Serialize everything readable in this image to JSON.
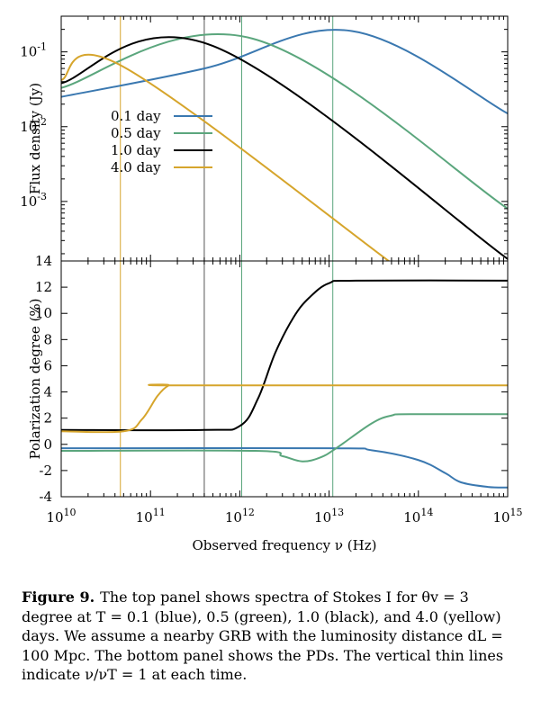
{
  "chart_data": [
    {
      "type": "line",
      "panel": "top",
      "ylabel": "Flux density (Jy)",
      "xscale": "log",
      "yscale": "log",
      "xlim": [
        10000000000.0,
        1000000000000000.0
      ],
      "ylim": [
        0.00016,
        0.3
      ],
      "ytick_labels": [
        {
          "value": 0.001,
          "base": "10",
          "exp": "-3"
        },
        {
          "value": 0.01,
          "base": "10",
          "exp": "-2"
        },
        {
          "value": 0.1,
          "base": "10",
          "exp": "-1"
        }
      ],
      "legend_position": "upper-left",
      "series": [
        {
          "name": "0.1 day",
          "color": "#3a78b0",
          "x": [
            10000000000.0,
            400000000000.0,
            18000000000000.0,
            1000000000000000.0
          ],
          "y": [
            0.025,
            0.06,
            0.19,
            0.015
          ]
        },
        {
          "name": "0.5 day",
          "color": "#5ba67d",
          "x": [
            10000000000.0,
            1400000000000.0,
            1000000000000000.0
          ],
          "y": [
            0.033,
            0.15,
            0.0008
          ]
        },
        {
          "name": "1.0 day",
          "color": "#000000",
          "x": [
            10000000000.0,
            500000000000.0,
            1000000000000000.0
          ],
          "y": [
            0.038,
            0.12,
            0.00017
          ]
        },
        {
          "name": "4.0 day",
          "color": "#d6a52c",
          "x": [
            10000000000.0,
            50000000000.0,
            50000000000000.0
          ],
          "y": [
            0.042,
            0.063,
            0.00015
          ]
        }
      ]
    },
    {
      "type": "line",
      "panel": "bottom",
      "xlabel": "Observed frequency ν (Hz)",
      "ylabel": "Polarization degree (%)",
      "xscale": "log",
      "xlim": [
        10000000000.0,
        1000000000000000.0
      ],
      "ylim": [
        -4,
        14
      ],
      "yticks": [
        "14",
        "12",
        "10",
        "8",
        "6",
        "4",
        "2",
        "0",
        "-2",
        "-4"
      ],
      "xtick_labels": [
        {
          "value": 10000000000.0,
          "base": "10",
          "exp": "10"
        },
        {
          "value": 100000000000.0,
          "base": "10",
          "exp": "11"
        },
        {
          "value": 1000000000000.0,
          "base": "10",
          "exp": "12"
        },
        {
          "value": 10000000000000.0,
          "base": "10",
          "exp": "13"
        },
        {
          "value": 100000000000000.0,
          "base": "10",
          "exp": "14"
        },
        {
          "value": 1000000000000000.0,
          "base": "10",
          "exp": "15"
        }
      ],
      "series": [
        {
          "name": "0.1 day",
          "color": "#3a78b0",
          "x": [
            10000000000.0,
            10000000000000.0,
            30000000000000.0,
            100000000000000.0,
            200000000000000.0,
            300000000000000.0,
            600000000000000.0,
            1000000000000000.0
          ],
          "y": [
            -0.3,
            -0.3,
            -0.45,
            -1.2,
            -2.2,
            -2.9,
            -3.25,
            -3.3
          ]
        },
        {
          "name": "0.5 day",
          "color": "#5ba67d",
          "x": [
            10000000000.0,
            1500000000000.0,
            3000000000000.0,
            5000000000000.0,
            8000000000000.0,
            12000000000000.0,
            30000000000000.0,
            50000000000000.0,
            80000000000000.0,
            1000000000000000.0
          ],
          "y": [
            -0.5,
            -0.5,
            -0.9,
            -1.3,
            -1.0,
            -0.3,
            1.6,
            2.2,
            2.3,
            2.3
          ]
        },
        {
          "name": "1.0 day",
          "color": "#000000",
          "x": [
            10000000000.0,
            400000000000.0,
            1000000000000.0,
            1600000000000.0,
            2500000000000.0,
            4000000000000.0,
            6000000000000.0,
            10000000000000.0,
            20000000000000.0,
            1000000000000000.0
          ],
          "y": [
            1.1,
            1.1,
            1.4,
            3.5,
            7.0,
            9.7,
            11.2,
            12.3,
            12.5,
            12.5
          ]
        },
        {
          "name": "4.0 day",
          "color": "#d6a52c",
          "x": [
            10000000000.0,
            50000000000.0,
            80000000000.0,
            120000000000.0,
            160000000000.0,
            200000000000.0,
            1000000000000000.0
          ],
          "y": [
            1.0,
            1.0,
            1.9,
            3.7,
            4.5,
            4.5,
            4.5
          ]
        }
      ]
    }
  ],
  "vertical_lines": [
    {
      "x": 46000000000.0,
      "color": "#d6a52c"
    },
    {
      "x": 400000000000.0,
      "color": "#555555"
    },
    {
      "x": 1050000000000.0,
      "color": "#5ba67d"
    },
    {
      "x": 11000000000000.0,
      "color": "#5ba67d"
    }
  ],
  "caption": {
    "label": "Figure 9.",
    "text": "The top panel shows spectra of Stokes I for θv = 3 degree at T = 0.1 (blue), 0.5 (green), 1.0 (black), and 4.0 (yellow) days. We assume a nearby GRB with the luminosity distance dL = 100 Mpc. The bottom panel shows the PDs. The vertical thin lines indicate ν/νT = 1 at each time."
  }
}
